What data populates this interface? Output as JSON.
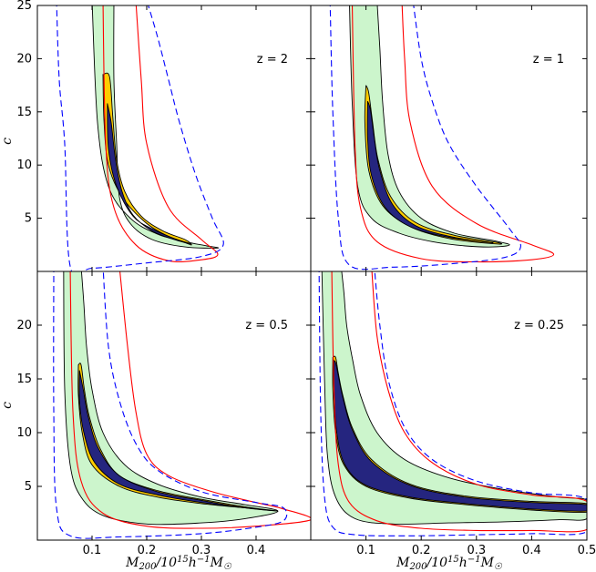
{
  "colors": {
    "outer_fill": "#ccf5cc",
    "mid_fill": "#ffcc00",
    "inner_fill": "#25257f",
    "outline": "#000000",
    "red_curve": "#ff0000",
    "blue_dash": "#0000ff"
  },
  "chart_data": [
    {
      "type": "contour",
      "label": "z = 2",
      "xlabel": "M_200/10^15 h^-1 M_sun",
      "ylabel": "c",
      "xlim": [
        0,
        0.5
      ],
      "ylim": [
        0,
        25
      ],
      "yticks": [
        5,
        10,
        15,
        20,
        25
      ],
      "xticks": [],
      "regions": {
        "outer": {
          "x": [
            0.1,
            0.11,
            0.13,
            0.17,
            0.22,
            0.27,
            0.31,
            0.33,
            0.27,
            0.21,
            0.17,
            0.15,
            0.145,
            0.14,
            0.14
          ],
          "y": [
            25.5,
            14.0,
            8.0,
            5.0,
            3.5,
            2.8,
            2.4,
            2.2,
            2.3,
            3.0,
            4.5,
            7.0,
            12.0,
            18.0,
            25.5
          ]
        },
        "mid": {
          "x": [
            0.12,
            0.122,
            0.13,
            0.155,
            0.2,
            0.24,
            0.27,
            0.282,
            0.27,
            0.23,
            0.19,
            0.16,
            0.145,
            0.138,
            0.132,
            0.12
          ],
          "y": [
            18.5,
            14.0,
            10.0,
            7.0,
            4.5,
            3.3,
            2.7,
            2.5,
            3.0,
            3.8,
            5.2,
            7.5,
            10.5,
            14.5,
            18.3,
            18.5
          ]
        },
        "inner": {
          "x": [
            0.128,
            0.13,
            0.145,
            0.175,
            0.21,
            0.25,
            0.28,
            0.25,
            0.21,
            0.175,
            0.155,
            0.143,
            0.135,
            0.128
          ],
          "y": [
            15.8,
            11.5,
            8.0,
            5.2,
            4.0,
            3.1,
            2.6,
            3.0,
            3.8,
            5.3,
            7.5,
            10.5,
            14.0,
            15.8
          ]
        }
      },
      "red_curve": {
        "x": [
          0.12,
          0.125,
          0.14,
          0.18,
          0.24,
          0.3,
          0.33,
          0.3,
          0.24,
          0.2,
          0.19,
          0.18
        ],
        "y": [
          25.5,
          12.0,
          6.0,
          2.5,
          1.0,
          1.1,
          1.6,
          3.0,
          6.0,
          12.0,
          18.0,
          25.5
        ]
      },
      "blue_dash": {
        "x": [
          0.035,
          0.04,
          0.05,
          0.06,
          0.1,
          0.2,
          0.3,
          0.34,
          0.32,
          0.29,
          0.26,
          0.24,
          0.22,
          0.2
        ],
        "y": [
          25.5,
          18.0,
          12.0,
          0.5,
          0.3,
          0.8,
          1.4,
          2.5,
          5.0,
          9.0,
          14.0,
          18.0,
          22.0,
          25.5
        ]
      }
    },
    {
      "type": "contour",
      "label": "z = 1",
      "xlabel": "M_200/10^15 h^-1 M_sun",
      "ylabel": "c",
      "xlim": [
        0,
        0.5
      ],
      "ylim": [
        0,
        25
      ],
      "yticks": [],
      "xticks": [],
      "regions": {
        "outer": {
          "x": [
            0.07,
            0.075,
            0.085,
            0.11,
            0.16,
            0.22,
            0.28,
            0.33,
            0.36,
            0.33,
            0.26,
            0.2,
            0.16,
            0.14,
            0.13,
            0.125,
            0.12
          ],
          "y": [
            25.5,
            16.0,
            8.0,
            5.0,
            3.6,
            2.8,
            2.4,
            2.3,
            2.5,
            2.9,
            3.6,
            5.0,
            7.5,
            11.0,
            16.0,
            21.0,
            25.5
          ]
        },
        "mid": {
          "x": [
            0.1,
            0.098,
            0.105,
            0.13,
            0.18,
            0.25,
            0.33,
            0.34,
            0.26,
            0.19,
            0.145,
            0.122,
            0.112,
            0.105,
            0.1
          ],
          "y": [
            17.5,
            14.0,
            9.5,
            6.2,
            4.2,
            3.1,
            2.6,
            2.7,
            3.4,
            4.6,
            7.0,
            10.5,
            14.0,
            16.8,
            17.5
          ]
        },
        "inner": {
          "x": [
            0.103,
            0.103,
            0.11,
            0.135,
            0.18,
            0.25,
            0.33,
            0.26,
            0.19,
            0.148,
            0.125,
            0.115,
            0.108,
            0.103
          ],
          "y": [
            16.0,
            12.5,
            9.0,
            6.0,
            4.2,
            3.2,
            2.7,
            3.2,
            4.3,
            6.3,
            9.5,
            12.5,
            15.2,
            16.0
          ]
        }
      },
      "red_curve": {
        "x": [
          0.075,
          0.08,
          0.09,
          0.12,
          0.2,
          0.3,
          0.4,
          0.44,
          0.4,
          0.3,
          0.22,
          0.18,
          0.17,
          0.165
        ],
        "y": [
          25.5,
          12.0,
          6.0,
          2.8,
          1.2,
          0.9,
          1.1,
          1.6,
          2.5,
          4.5,
          8.0,
          14.0,
          20.0,
          25.5
        ]
      },
      "blue_dash": {
        "x": [
          0.035,
          0.04,
          0.05,
          0.07,
          0.15,
          0.25,
          0.35,
          0.38,
          0.36,
          0.3,
          0.25,
          0.22,
          0.2,
          0.185
        ],
        "y": [
          25.5,
          15.0,
          5.0,
          0.6,
          0.4,
          0.7,
          1.3,
          2.3,
          4.0,
          8.0,
          12.0,
          16.0,
          20.0,
          25.5
        ]
      }
    },
    {
      "type": "contour",
      "label": "z = 0.5",
      "xlabel": "M_200/10^15 h^-1 M_sun",
      "ylabel": "c",
      "xlim": [
        0,
        0.5
      ],
      "ylim": [
        0,
        25
      ],
      "yticks": [
        5,
        10,
        15,
        20
      ],
      "xticks": [
        0.1,
        0.2,
        0.3,
        0.4
      ],
      "regions": {
        "outer": {
          "x": [
            0.048,
            0.05,
            0.06,
            0.08,
            0.12,
            0.2,
            0.3,
            0.38,
            0.44,
            0.38,
            0.3,
            0.22,
            0.16,
            0.12,
            0.1,
            0.09,
            0.085,
            0.08
          ],
          "y": [
            25.5,
            14.0,
            7.0,
            4.0,
            2.3,
            1.5,
            1.6,
            2.0,
            2.7,
            3.3,
            4.0,
            5.2,
            7.0,
            10.0,
            14.0,
            18.0,
            22.0,
            25.5
          ]
        },
        "mid": {
          "x": [
            0.075,
            0.075,
            0.082,
            0.1,
            0.15,
            0.22,
            0.3,
            0.38,
            0.44,
            0.38,
            0.3,
            0.22,
            0.15,
            0.115,
            0.095,
            0.086,
            0.08,
            0.075
          ],
          "y": [
            16.3,
            13.5,
            10.0,
            7.0,
            5.0,
            4.0,
            3.4,
            3.0,
            2.7,
            3.1,
            3.8,
            4.6,
            6.0,
            8.5,
            11.5,
            14.0,
            16.3,
            16.3
          ]
        },
        "inner": {
          "x": [
            0.077,
            0.077,
            0.085,
            0.105,
            0.15,
            0.22,
            0.3,
            0.38,
            0.44,
            0.38,
            0.3,
            0.22,
            0.15,
            0.112,
            0.093,
            0.084,
            0.077
          ],
          "y": [
            15.8,
            13.0,
            10.0,
            7.2,
            5.2,
            4.2,
            3.5,
            3.0,
            2.7,
            3.0,
            3.7,
            4.5,
            6.0,
            8.5,
            11.5,
            14.0,
            15.8
          ]
        }
      },
      "red_curve": {
        "x": [
          0.06,
          0.065,
          0.08,
          0.12,
          0.2,
          0.3,
          0.4,
          0.5,
          0.45,
          0.4,
          0.32,
          0.24,
          0.2,
          0.18,
          0.165,
          0.15
        ],
        "y": [
          25.5,
          12.0,
          5.5,
          2.5,
          1.3,
          1.1,
          1.3,
          1.9,
          2.9,
          3.5,
          4.5,
          6.0,
          8.0,
          12.0,
          18.0,
          25.5
        ]
      },
      "blue_dash": {
        "x": [
          0.03,
          0.03,
          0.035,
          0.06,
          0.15,
          0.3,
          0.4,
          0.45,
          0.45,
          0.4,
          0.3,
          0.22,
          0.18,
          0.15,
          0.13,
          0.12
        ],
        "y": [
          25.5,
          12.0,
          3.0,
          0.4,
          0.3,
          0.6,
          1.2,
          1.8,
          3.0,
          3.5,
          4.5,
          6.5,
          9.0,
          13.0,
          18.0,
          25.5
        ]
      }
    },
    {
      "type": "contour",
      "label": "z = 0.25",
      "xlabel": "M_200/10^15 h^-1 M_sun",
      "ylabel": "c",
      "xlim": [
        0,
        0.5
      ],
      "ylim": [
        0,
        25
      ],
      "yticks": [],
      "xticks": [
        0.1,
        0.2,
        0.3,
        0.4,
        0.5
      ],
      "regions": {
        "outer": {
          "x": [
            0.02,
            0.025,
            0.03,
            0.045,
            0.08,
            0.15,
            0.25,
            0.35,
            0.45,
            0.5,
            0.5,
            0.45,
            0.35,
            0.25,
            0.17,
            0.12,
            0.09,
            0.075,
            0.065,
            0.06,
            0.055
          ],
          "y": [
            25.5,
            15.0,
            8.0,
            4.0,
            2.0,
            1.5,
            1.6,
            1.7,
            1.9,
            2.0,
            3.7,
            4.0,
            4.7,
            5.8,
            7.5,
            10.0,
            13.5,
            17.0,
            20.0,
            23.0,
            25.5
          ]
        },
        "mid": {
          "x": [
            0.04,
            0.04,
            0.045,
            0.06,
            0.1,
            0.18,
            0.28,
            0.4,
            0.5,
            0.5,
            0.4,
            0.28,
            0.18,
            0.11,
            0.075,
            0.058,
            0.05,
            0.045,
            0.04
          ],
          "y": [
            17.0,
            14.0,
            10.0,
            7.0,
            5.0,
            3.9,
            3.3,
            2.8,
            2.6,
            3.4,
            3.6,
            4.1,
            5.2,
            7.5,
            10.5,
            13.5,
            15.5,
            17.0,
            17.0
          ]
        },
        "inner": {
          "x": [
            0.042,
            0.042,
            0.047,
            0.062,
            0.1,
            0.18,
            0.28,
            0.4,
            0.5,
            0.5,
            0.4,
            0.28,
            0.18,
            0.11,
            0.075,
            0.058,
            0.05,
            0.045,
            0.042
          ],
          "y": [
            16.7,
            14.0,
            10.0,
            7.0,
            5.1,
            4.0,
            3.4,
            2.9,
            2.7,
            3.3,
            3.5,
            4.0,
            5.1,
            7.3,
            10.3,
            13.3,
            15.3,
            16.5,
            16.7
          ]
        }
      },
      "red_curve": {
        "x": [
          0.038,
          0.042,
          0.05,
          0.07,
          0.12,
          0.2,
          0.3,
          0.4,
          0.5,
          0.5,
          0.4,
          0.3,
          0.22,
          0.17,
          0.14,
          0.12,
          0.11
        ],
        "y": [
          25.5,
          14.0,
          7.0,
          3.5,
          1.8,
          1.1,
          0.9,
          0.9,
          1.0,
          3.6,
          4.2,
          5.2,
          7.2,
          10.0,
          14.0,
          19.0,
          25.5
        ]
      },
      "blue_dash": {
        "x": [
          0.015,
          0.018,
          0.025,
          0.04,
          0.08,
          0.18,
          0.3,
          0.4,
          0.5,
          0.5,
          0.4,
          0.3,
          0.22,
          0.17,
          0.14,
          0.125,
          0.115
        ],
        "y": [
          25.5,
          12.0,
          4.0,
          1.2,
          0.5,
          0.4,
          0.5,
          0.6,
          0.8,
          3.8,
          4.4,
          5.5,
          7.5,
          10.5,
          15.0,
          20.0,
          25.5
        ]
      }
    }
  ]
}
